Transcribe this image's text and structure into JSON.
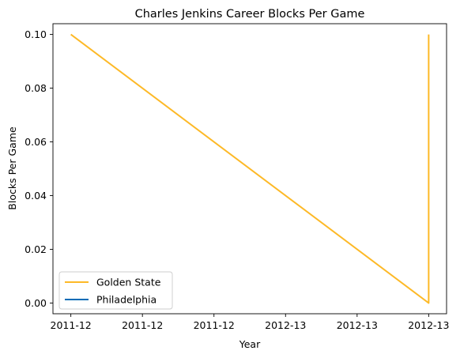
{
  "chart_data": {
    "type": "line",
    "title": "Charles Jenkins  Career Blocks Per Game",
    "xlabel": "Year",
    "ylabel": "Blocks Per Game",
    "x_ticks": [
      "2011-12",
      "2011-12",
      "2011-12",
      "2012-13",
      "2012-13",
      "2012-13"
    ],
    "y_ticks": [
      "0.00",
      "0.02",
      "0.04",
      "0.06",
      "0.08",
      "0.10"
    ],
    "xlim": [
      -0.05,
      1.05
    ],
    "ylim": [
      -0.004,
      0.104
    ],
    "legend_position": "lower-left",
    "series": [
      {
        "name": "Golden State",
        "color": "#FDB927",
        "x": [
          0,
          1,
          1
        ],
        "y": [
          0.1,
          0.0,
          0.1
        ]
      },
      {
        "name": "Philadelphia",
        "color": "#006BB6",
        "x": [],
        "y": []
      }
    ]
  }
}
